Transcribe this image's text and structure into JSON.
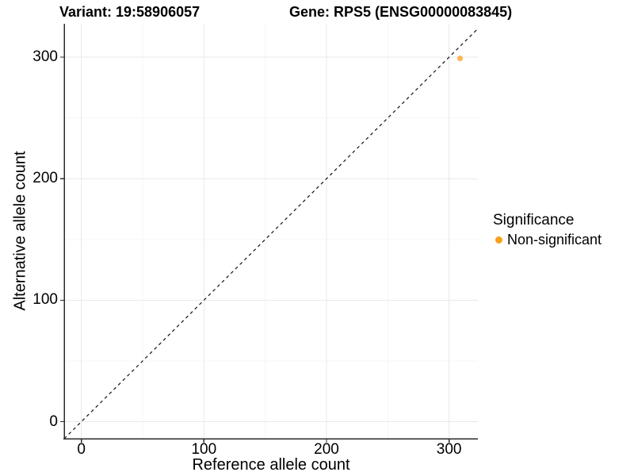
{
  "chart_data": {
    "type": "scatter",
    "title_left": "Variant: 19:58906057",
    "title_right": "Gene: RPS5 (ENSG00000083845)",
    "xlabel": "Reference allele count",
    "ylabel": "Alternative allele count",
    "xlim": [
      -14,
      323.5
    ],
    "ylim": [
      -14,
      327.5
    ],
    "x_major_ticks": [
      0,
      100,
      200,
      300
    ],
    "y_major_ticks": [
      0,
      100,
      200,
      300
    ],
    "x_minor_ticks": [
      50,
      150,
      250
    ],
    "y_minor_ticks": [
      50,
      150,
      250
    ],
    "grid": "major and minor gridlines, very light gray on white",
    "identity_line": {
      "style": "dashed",
      "equation": "y = x",
      "color": "#111111"
    },
    "point_opacity": 0.75,
    "series": [
      {
        "name": "Non-significant",
        "color": "#F9A11E",
        "points": [
          {
            "x": 309,
            "y": 299
          }
        ]
      }
    ],
    "legend": {
      "title": "Significance",
      "position": "right",
      "entries": [
        {
          "label": "Non-significant",
          "color": "#F9A11E"
        }
      ]
    },
    "colors": {
      "axis": "#2a2a2a",
      "grid_major": "#e9e9e9",
      "grid_minor": "#f5f5f5",
      "text": "#000000"
    }
  }
}
